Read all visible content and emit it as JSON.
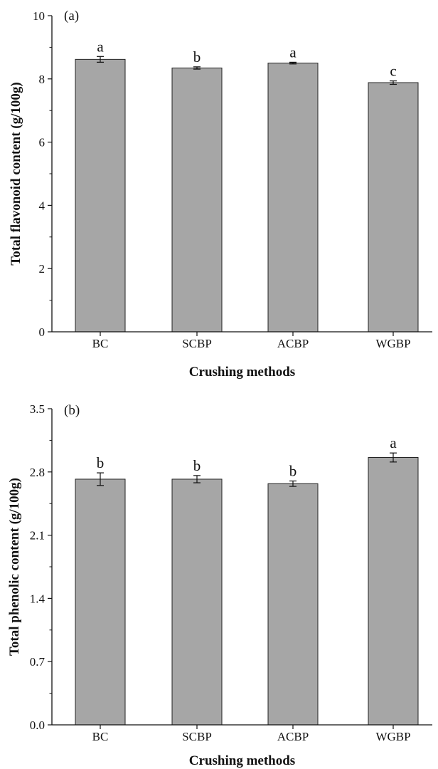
{
  "chart_data": [
    {
      "type": "bar",
      "panel_label": "(a)",
      "categories": [
        "BC",
        "SCBP",
        "ACBP",
        "WGBP"
      ],
      "values": [
        9.48,
        9.18,
        9.35,
        8.67
      ],
      "errors": [
        0.1,
        0.04,
        0.03,
        0.06
      ],
      "significance": [
        "a",
        "b",
        "a",
        "c"
      ],
      "xlabel": "Crushing methods",
      "ylabel": "Total flavonoid content (g/100g)",
      "ylim": [
        0,
        11
      ],
      "yticks": [
        "0",
        "2",
        "4",
        "6",
        "8",
        "10"
      ],
      "bar_color": "#a6a6a6"
    },
    {
      "type": "bar",
      "panel_label": "(b)",
      "categories": [
        "BC",
        "SCBP",
        "ACBP",
        "WGBP"
      ],
      "values": [
        2.72,
        2.72,
        2.67,
        2.96
      ],
      "errors": [
        0.07,
        0.04,
        0.03,
        0.05
      ],
      "significance": [
        "b",
        "b",
        "b",
        "a"
      ],
      "xlabel": "Crushing methods",
      "ylabel": "Total phenolic content (g/100g)",
      "ylim": [
        0,
        3.5
      ],
      "yticks": [
        "0.0",
        "0.7",
        "1.4",
        "2.1",
        "2.8",
        "3.5"
      ],
      "bar_color": "#a6a6a6"
    }
  ]
}
